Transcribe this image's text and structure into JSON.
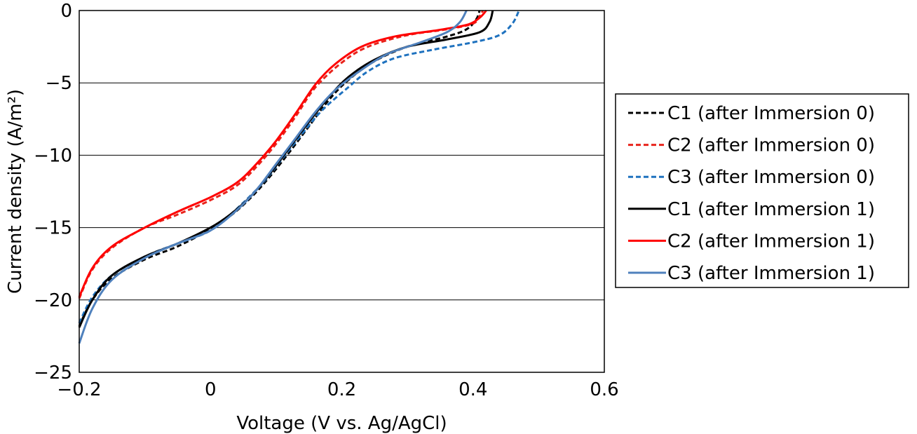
{
  "chart_data": {
    "type": "line",
    "title": "",
    "xlabel": "Voltage (V vs. Ag/AgCl)",
    "ylabel": "Current density (A/m²)",
    "xlim": [
      -0.2,
      0.6
    ],
    "ylim": [
      -25,
      0
    ],
    "x_ticks": [
      -0.2,
      0,
      0.2,
      0.4,
      0.6
    ],
    "x_tick_labels": [
      "−0.2",
      "0",
      "0.2",
      "0.4",
      "0.6"
    ],
    "y_ticks": [
      0,
      -5,
      -10,
      -15,
      -20,
      -25
    ],
    "y_tick_labels": [
      "0",
      "−5",
      "−10",
      "−15",
      "−20",
      "−25"
    ],
    "grid": "horizontal",
    "legend_position": "right",
    "series": [
      {
        "name": "C1 (after Immersion 0)",
        "color": "#000000",
        "dash": "dashed",
        "points": [
          [
            -0.2,
            -21.8
          ],
          [
            -0.18,
            -20.0
          ],
          [
            -0.15,
            -18.5
          ],
          [
            -0.1,
            -17.2
          ],
          [
            -0.05,
            -16.3
          ],
          [
            0.0,
            -15.1
          ],
          [
            0.03,
            -14.2
          ],
          [
            0.06,
            -13.0
          ],
          [
            0.09,
            -11.5
          ],
          [
            0.12,
            -9.8
          ],
          [
            0.15,
            -8.0
          ],
          [
            0.18,
            -6.2
          ],
          [
            0.21,
            -4.8
          ],
          [
            0.25,
            -3.5
          ],
          [
            0.3,
            -2.5
          ],
          [
            0.36,
            -1.8
          ],
          [
            0.39,
            -1.3
          ],
          [
            0.405,
            -0.6
          ],
          [
            0.41,
            0.0
          ]
        ]
      },
      {
        "name": "C2 (after Immersion 0)",
        "color": "#e8241c",
        "dash": "dashed",
        "points": [
          [
            -0.2,
            -19.9
          ],
          [
            -0.18,
            -17.9
          ],
          [
            -0.15,
            -16.4
          ],
          [
            -0.1,
            -15.0
          ],
          [
            -0.05,
            -14.1
          ],
          [
            0.0,
            -13.1
          ],
          [
            0.04,
            -12.1
          ],
          [
            0.07,
            -10.8
          ],
          [
            0.1,
            -9.2
          ],
          [
            0.13,
            -7.3
          ],
          [
            0.16,
            -5.3
          ],
          [
            0.2,
            -3.6
          ],
          [
            0.24,
            -2.5
          ],
          [
            0.3,
            -1.7
          ],
          [
            0.36,
            -1.3
          ],
          [
            0.4,
            -0.9
          ],
          [
            0.41,
            -0.4
          ],
          [
            0.415,
            0.0
          ]
        ]
      },
      {
        "name": "C3 (after Immersion 0)",
        "color": "#1f72bf",
        "dash": "dashed",
        "points": [
          [
            -0.2,
            -21.6
          ],
          [
            -0.18,
            -19.8
          ],
          [
            -0.15,
            -18.3
          ],
          [
            -0.1,
            -17.0
          ],
          [
            -0.05,
            -16.1
          ],
          [
            0.0,
            -15.2
          ],
          [
            0.04,
            -13.7
          ],
          [
            0.08,
            -11.9
          ],
          [
            0.11,
            -10.2
          ],
          [
            0.14,
            -8.5
          ],
          [
            0.17,
            -6.9
          ],
          [
            0.21,
            -5.3
          ],
          [
            0.24,
            -4.2
          ],
          [
            0.28,
            -3.3
          ],
          [
            0.34,
            -2.7
          ],
          [
            0.4,
            -2.2
          ],
          [
            0.44,
            -1.7
          ],
          [
            0.46,
            -0.9
          ],
          [
            0.47,
            0.0
          ]
        ]
      },
      {
        "name": "C1 (after Immersion 1)",
        "color": "#000000",
        "dash": "solid",
        "points": [
          [
            -0.2,
            -21.9
          ],
          [
            -0.18,
            -20.0
          ],
          [
            -0.15,
            -18.3
          ],
          [
            -0.1,
            -17.0
          ],
          [
            -0.05,
            -16.1
          ],
          [
            0.0,
            -15.0
          ],
          [
            0.03,
            -14.1
          ],
          [
            0.06,
            -12.9
          ],
          [
            0.09,
            -11.3
          ],
          [
            0.12,
            -9.5
          ],
          [
            0.15,
            -7.7
          ],
          [
            0.18,
            -6.0
          ],
          [
            0.21,
            -4.6
          ],
          [
            0.25,
            -3.4
          ],
          [
            0.3,
            -2.5
          ],
          [
            0.36,
            -2.0
          ],
          [
            0.41,
            -1.5
          ],
          [
            0.425,
            -0.8
          ],
          [
            0.43,
            0.0
          ]
        ]
      },
      {
        "name": "C2 (after Immersion 1)",
        "color": "#ff0000",
        "dash": "solid",
        "points": [
          [
            -0.2,
            -19.8
          ],
          [
            -0.18,
            -17.8
          ],
          [
            -0.15,
            -16.3
          ],
          [
            -0.1,
            -15.0
          ],
          [
            -0.05,
            -13.9
          ],
          [
            0.0,
            -12.9
          ],
          [
            0.04,
            -11.9
          ],
          [
            0.07,
            -10.6
          ],
          [
            0.1,
            -9.0
          ],
          [
            0.13,
            -7.1
          ],
          [
            0.16,
            -5.1
          ],
          [
            0.19,
            -3.7
          ],
          [
            0.23,
            -2.5
          ],
          [
            0.28,
            -1.8
          ],
          [
            0.34,
            -1.4
          ],
          [
            0.39,
            -1.0
          ],
          [
            0.41,
            -0.5
          ],
          [
            0.42,
            0.0
          ]
        ]
      },
      {
        "name": "C3 (after Immersion 1)",
        "color": "#4f81bd",
        "dash": "solid",
        "points": [
          [
            -0.2,
            -23.0
          ],
          [
            -0.18,
            -20.6
          ],
          [
            -0.15,
            -18.6
          ],
          [
            -0.1,
            -17.1
          ],
          [
            -0.05,
            -16.1
          ],
          [
            0.0,
            -15.2
          ],
          [
            0.04,
            -13.8
          ],
          [
            0.07,
            -12.4
          ],
          [
            0.1,
            -10.6
          ],
          [
            0.13,
            -8.8
          ],
          [
            0.16,
            -7.0
          ],
          [
            0.19,
            -5.5
          ],
          [
            0.23,
            -4.1
          ],
          [
            0.27,
            -3.0
          ],
          [
            0.32,
            -2.2
          ],
          [
            0.36,
            -1.5
          ],
          [
            0.38,
            -0.8
          ],
          [
            0.39,
            0.0
          ]
        ]
      }
    ]
  }
}
